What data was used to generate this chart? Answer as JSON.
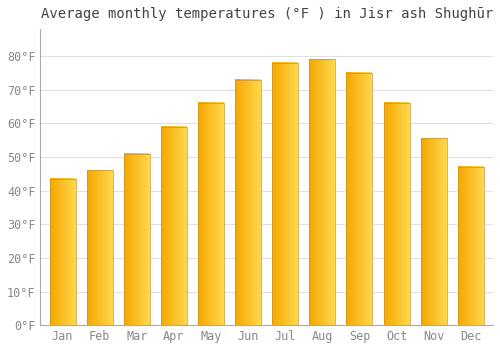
{
  "title": "Average monthly temperatures (°F ) in Jisr ash Shughūr",
  "months": [
    "Jan",
    "Feb",
    "Mar",
    "Apr",
    "May",
    "Jun",
    "Jul",
    "Aug",
    "Sep",
    "Oct",
    "Nov",
    "Dec"
  ],
  "values": [
    43.5,
    46.0,
    51.0,
    59.0,
    66.0,
    73.0,
    78.0,
    79.0,
    75.0,
    66.0,
    55.5,
    47.0
  ],
  "bar_color_left": "#F5A800",
  "bar_color_right": "#FFD84D",
  "bar_edge_color": "#C8922A",
  "ylim": [
    0,
    88
  ],
  "yticks": [
    0,
    10,
    20,
    30,
    40,
    50,
    60,
    70,
    80
  ],
  "ytick_labels": [
    "0°F",
    "10°F",
    "20°F",
    "30°F",
    "40°F",
    "50°F",
    "60°F",
    "70°F",
    "80°F"
  ],
  "background_color": "#FFFFFF",
  "grid_color": "#E0E0E0",
  "title_fontsize": 10,
  "tick_fontsize": 8.5,
  "font_family": "monospace"
}
